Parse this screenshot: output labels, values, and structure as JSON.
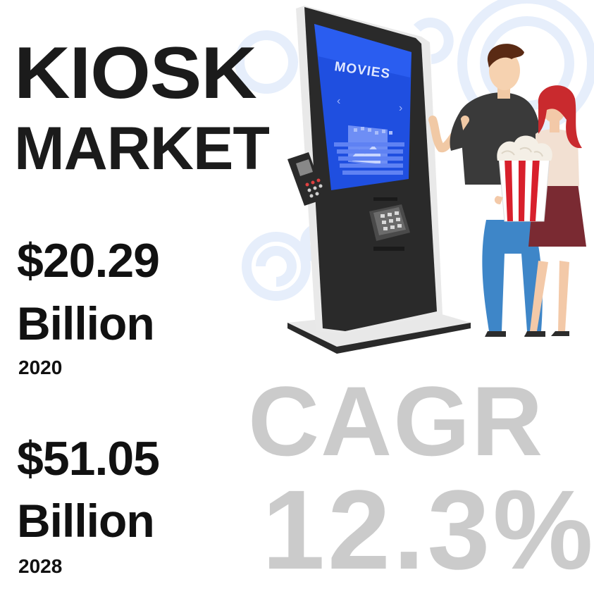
{
  "title": {
    "line1": "KIOSK",
    "line2": "MARKET"
  },
  "stats": [
    {
      "value": "$20.29",
      "unit": "Billion",
      "year": "2020"
    },
    {
      "value": "$51.05",
      "unit": "Billion",
      "year": "2028"
    }
  ],
  "cagr": {
    "label": "CAGR",
    "value": "12.3%"
  },
  "kiosk": {
    "screen_label": "MOVIES"
  },
  "colors": {
    "headline": "#1b1b1b",
    "cagr_text": "#cbcbcb",
    "screen": "#1f4fe0",
    "kiosk_body": "#2a2a2a",
    "popcorn_red": "#d8202c",
    "decor_circles": "#e6eefb"
  }
}
